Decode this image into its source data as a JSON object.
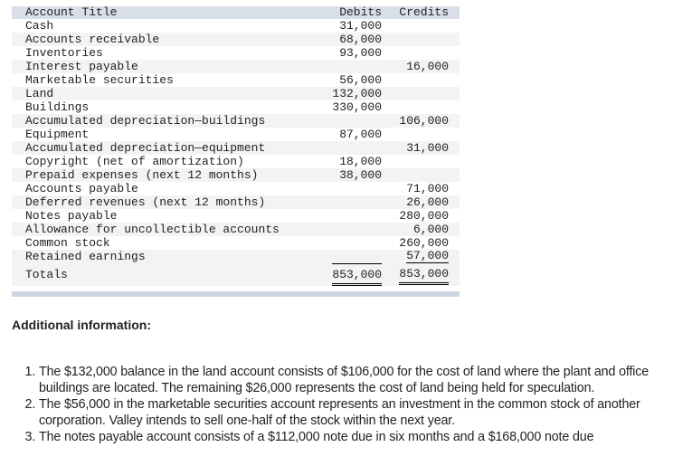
{
  "table": {
    "headers": {
      "title": "Account Title",
      "debits": "Debits",
      "credits": "Credits"
    },
    "rows": [
      {
        "title": "Cash",
        "debit": "31,000",
        "credit": ""
      },
      {
        "title": "Accounts receivable",
        "debit": "68,000",
        "credit": ""
      },
      {
        "title": "Inventories",
        "debit": "93,000",
        "credit": ""
      },
      {
        "title": "Interest payable",
        "debit": "",
        "credit": "16,000"
      },
      {
        "title": "Marketable securities",
        "debit": "56,000",
        "credit": ""
      },
      {
        "title": "Land",
        "debit": "132,000",
        "credit": ""
      },
      {
        "title": "Buildings",
        "debit": "330,000",
        "credit": ""
      },
      {
        "title": "Accumulated depreciation—buildings",
        "debit": "",
        "credit": "106,000"
      },
      {
        "title": "Equipment",
        "debit": "87,000",
        "credit": ""
      },
      {
        "title": "Accumulated depreciation—equipment",
        "debit": "",
        "credit": "31,000"
      },
      {
        "title": "Copyright (net of amortization)",
        "debit": "18,000",
        "credit": ""
      },
      {
        "title": "Prepaid expenses (next 12 months)",
        "debit": "38,000",
        "credit": ""
      },
      {
        "title": "Accounts payable",
        "debit": "",
        "credit": "71,000"
      },
      {
        "title": "Deferred revenues (next 12 months)",
        "debit": "",
        "credit": "26,000"
      },
      {
        "title": "Notes payable",
        "debit": "",
        "credit": "280,000"
      },
      {
        "title": "Allowance for uncollectible accounts",
        "debit": "",
        "credit": "6,000"
      },
      {
        "title": "Common stock",
        "debit": "",
        "credit": "260,000"
      },
      {
        "title": "Retained earnings",
        "debit": "",
        "credit": "57,000"
      }
    ],
    "totals": {
      "title": "Totals",
      "debit": "853,000",
      "credit": "853,000"
    }
  },
  "additional": {
    "heading": "Additional information:",
    "items": [
      "The $132,000 balance in the land account consists of $106,000 for the cost of land where the plant and office buildings are located. The remaining $26,000 represents the cost of land being held for speculation.",
      "The $56,000 in the marketable securities account represents an investment in the common stock of another corporation. Valley intends to sell one-half of the stock within the next year.",
      "The notes payable account consists of a $112,000 note due in six months and a $168,000 note due"
    ]
  }
}
